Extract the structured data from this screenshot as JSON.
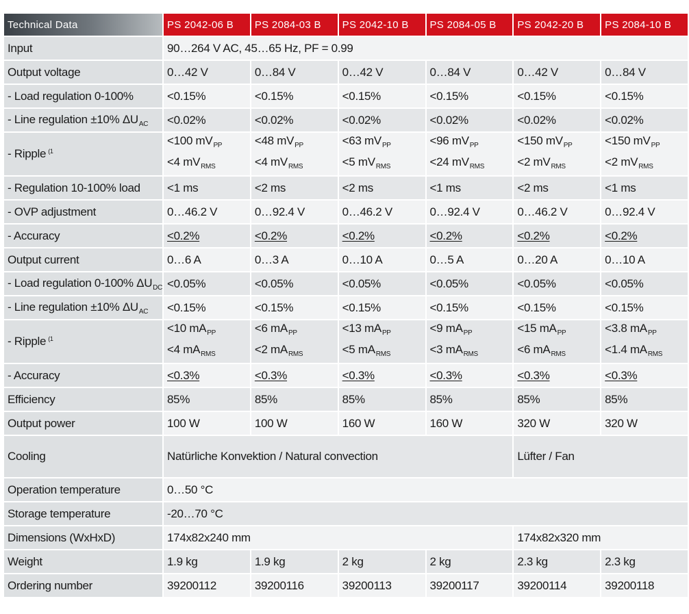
{
  "header": {
    "corner": "Technical Data",
    "models": [
      "PS 2042-06 B",
      "PS 2084-03 B",
      "PS 2042-10 B",
      "PS 2084-05 B",
      "PS 2042-20 B",
      "PS 2084-10 B"
    ]
  },
  "rows": {
    "input": {
      "label": "Input",
      "value": "90…264 V AC, 45…65 Hz, PF = 0.99"
    },
    "output_voltage": {
      "label": "Output voltage",
      "values": [
        "0…42 V",
        "0…84 V",
        "0…42 V",
        "0…84 V",
        "0…42 V",
        "0…84 V"
      ]
    },
    "v_load_reg": {
      "label": "- Load regulation 0-100%",
      "values": [
        "<0.15%",
        "<0.15%",
        "<0.15%",
        "<0.15%",
        "<0.15%",
        "<0.15%"
      ]
    },
    "v_line_reg": {
      "label": "- Line regulation ±10% ΔU",
      "sub": "AC",
      "values": [
        "<0.02%",
        "<0.02%",
        "<0.02%",
        "<0.02%",
        "<0.02%",
        "<0.02%"
      ]
    },
    "v_ripple": {
      "label": "- Ripple",
      "note": "(1",
      "pp_unit": "PP",
      "rms_unit": "RMS",
      "pp": [
        "<100 mV",
        "<48 mV",
        "<63 mV",
        "<96 mV",
        "<150 mV",
        "<150 mV"
      ],
      "rms": [
        "<4 mV",
        "<4 mV",
        "<5 mV",
        "<24 mV",
        "<2 mV",
        "<2 mV"
      ]
    },
    "reg_time": {
      "label": "- Regulation 10-100% load",
      "values": [
        "<1 ms",
        "<2 ms",
        "<2 ms",
        "<1 ms",
        "<2 ms",
        "<1 ms"
      ]
    },
    "ovp": {
      "label": "- OVP adjustment",
      "values": [
        "0…46.2 V",
        "0…92.4 V",
        "0…46.2 V",
        "0…92.4 V",
        "0…46.2 V",
        "0…92.4 V"
      ]
    },
    "v_accuracy": {
      "label": "- Accuracy",
      "values": [
        "<0.2%",
        "<0.2%",
        "<0.2%",
        "<0.2%",
        "<0.2%",
        "<0.2%"
      ]
    },
    "output_current": {
      "label": "Output current",
      "values": [
        "0…6 A",
        "0…3 A",
        "0…10 A",
        "0…5 A",
        "0…20 A",
        "0…10 A"
      ]
    },
    "i_load_reg": {
      "label": "- Load regulation 0-100% ΔU",
      "sub": "DC",
      "values": [
        "<0.05%",
        "<0.05%",
        "<0.05%",
        "<0.05%",
        "<0.05%",
        "<0.05%"
      ]
    },
    "i_line_reg": {
      "label": "- Line regulation ±10% ΔU",
      "sub": "AC",
      "values": [
        "<0.15%",
        "<0.15%",
        "<0.15%",
        "<0.15%",
        "<0.15%",
        "<0.15%"
      ]
    },
    "i_ripple": {
      "label": "- Ripple",
      "note": "(1",
      "pp_unit": "PP",
      "rms_unit": "RMS",
      "pp": [
        "<10 mA",
        "<6 mA",
        "<13 mA",
        "<9 mA",
        "<15 mA",
        "<3.8 mA"
      ],
      "rms": [
        "<4 mA",
        "<2 mA",
        "<5 mA",
        "<3 mA",
        "<6 mA",
        "<1.4 mA"
      ]
    },
    "i_accuracy": {
      "label": "- Accuracy",
      "values": [
        "<0.3%",
        "<0.3%",
        "<0.3%",
        "<0.3%",
        "<0.3%",
        "<0.3%"
      ]
    },
    "efficiency": {
      "label": "Efficiency",
      "values": [
        "85%",
        "85%",
        "85%",
        "85%",
        "85%",
        "85%"
      ]
    },
    "output_power": {
      "label": "Output power",
      "values": [
        "100 W",
        "100 W",
        "160 W",
        "160 W",
        "320 W",
        "320 W"
      ]
    },
    "cooling": {
      "label": "Cooling",
      "value_a": "Natürliche Konvektion / Natural convection",
      "value_b": "Lüfter / Fan"
    },
    "op_temp": {
      "label": "Operation temperature",
      "value": "0…50 °C"
    },
    "storage_temp": {
      "label": "Storage temperature",
      "value": "-20…70 °C"
    },
    "dimensions": {
      "label": "Dimensions (WxHxD)",
      "value_a": "174x82x240 mm",
      "value_b": "174x82x320 mm"
    },
    "weight": {
      "label": "Weight",
      "values": [
        "1.9 kg",
        "1.9 kg",
        "2 kg",
        "2 kg",
        "2.3 kg",
        "2.3 kg"
      ]
    },
    "ordering": {
      "label": "Ordering number",
      "values": [
        "39200112",
        "39200116",
        "39200113",
        "39200117",
        "39200114",
        "39200118"
      ]
    }
  },
  "colors": {
    "header_red": "#d1111c",
    "label_gray": "#dde0e2",
    "row_light": "#f2f3f4",
    "row_dark": "#e4e6e8"
  }
}
